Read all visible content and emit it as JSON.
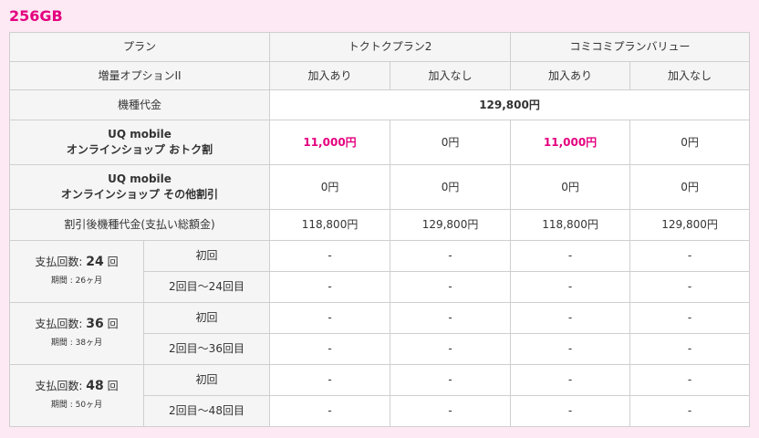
{
  "title": "256GB",
  "header": {
    "plan_label": "プラン",
    "plans": [
      "トクトクプラン2",
      "コミコミプランバリュー"
    ],
    "option_label": "増量オプションII",
    "options": [
      "加入あり",
      "加入なし",
      "加入あり",
      "加入なし"
    ]
  },
  "highlight_color": "#e4007f",
  "rows": [
    {
      "label": "機種代金",
      "values": [
        "129,800円"
      ],
      "bold": true
    },
    {
      "label": "UQ mobile\nオンラインショップ おトク割",
      "values": [
        "11,000円",
        "0円",
        "11,000円",
        "0円"
      ],
      "highlight": [
        true,
        false,
        true,
        false
      ]
    },
    {
      "label": "UQ mobile\nオンラインショップ その他割引",
      "values": [
        "0円",
        "0円",
        "0円",
        "0円"
      ]
    },
    {
      "label": "割引後機種代金(支払い総額金)",
      "values": [
        "118,800円",
        "129,800円",
        "118,800円",
        "129,800円"
      ]
    }
  ],
  "payments": [
    {
      "prefix": "支払回数:",
      "count": "24",
      "suffix": "回",
      "period": "期間 : 26ヶ月",
      "rows": [
        {
          "label": "初回",
          "values": [
            "-",
            "-",
            "-",
            "-"
          ]
        },
        {
          "label": "2回目〜24回目",
          "values": [
            "-",
            "-",
            "-",
            "-"
          ]
        }
      ]
    },
    {
      "prefix": "支払回数:",
      "count": "36",
      "suffix": "回",
      "period": "期間 : 38ヶ月",
      "rows": [
        {
          "label": "初回",
          "values": [
            "-",
            "-",
            "-",
            "-"
          ]
        },
        {
          "label": "2回目〜36回目",
          "values": [
            "-",
            "-",
            "-",
            "-"
          ]
        }
      ]
    },
    {
      "prefix": "支払回数:",
      "count": "48",
      "suffix": "回",
      "period": "期間 : 50ヶ月",
      "rows": [
        {
          "label": "初回",
          "values": [
            "-",
            "-",
            "-",
            "-"
          ]
        },
        {
          "label": "2回目〜48回目",
          "values": [
            "-",
            "-",
            "-",
            "-"
          ]
        }
      ]
    }
  ]
}
